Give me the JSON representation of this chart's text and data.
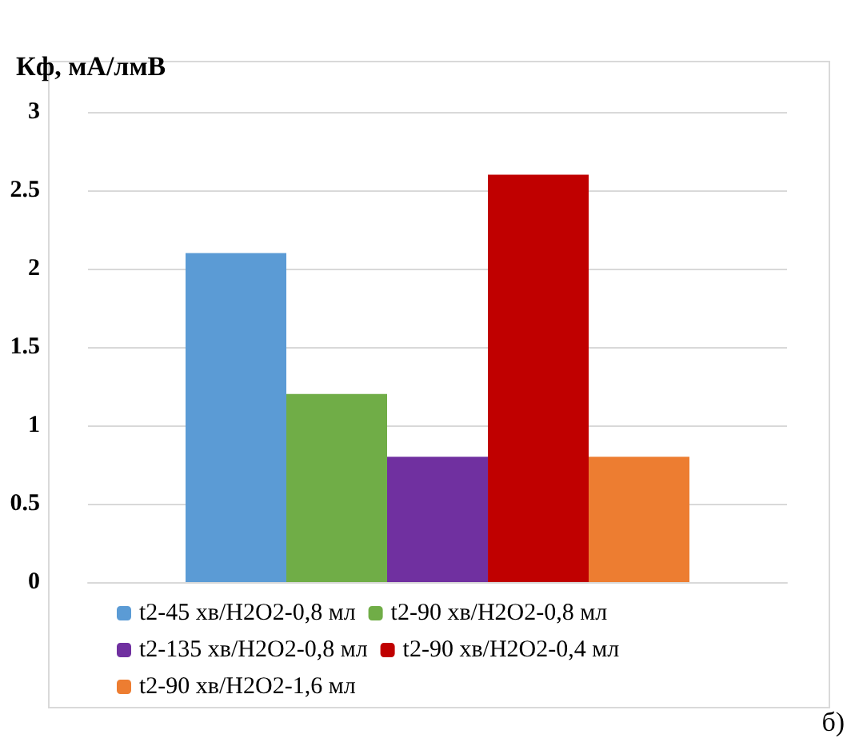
{
  "chart_data": {
    "type": "bar",
    "ylabel": "Кф, мА/лмВ",
    "categories": [
      null
    ],
    "series": [
      {
        "name": "t2-45 хв/H2O2-0,8 мл",
        "color": "#5b9bd5",
        "values": [
          2.1
        ]
      },
      {
        "name": "t2-90 хв/H2O2-0,8 мл",
        "color": "#70ad47",
        "values": [
          1.2
        ]
      },
      {
        "name": "t2-135 хв/H2O2-0,8 мл",
        "color": "#7030a0",
        "values": [
          0.8
        ]
      },
      {
        "name": "t2-90 хв/H2O2-0,4 мл",
        "color": "#c00000",
        "values": [
          2.6
        ]
      },
      {
        "name": "t2-90 хв/H2O2-1,6 мл",
        "color": "#ed7d31",
        "values": [
          0.8
        ]
      }
    ],
    "ylim": [
      0,
      3
    ],
    "yticks": [
      0,
      0.5,
      1,
      1.5,
      2,
      2.5,
      3
    ],
    "grid": "y",
    "legend": "bottom",
    "annotations": [
      "б)"
    ]
  }
}
